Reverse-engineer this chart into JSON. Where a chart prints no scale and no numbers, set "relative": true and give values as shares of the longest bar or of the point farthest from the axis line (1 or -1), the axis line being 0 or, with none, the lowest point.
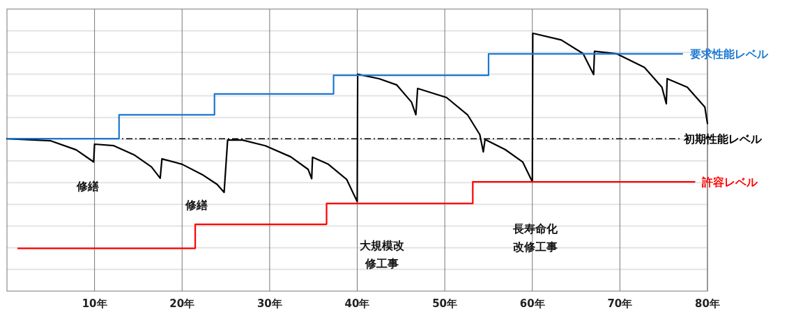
{
  "chart_data": {
    "type": "line",
    "relative": true,
    "grid": true,
    "xlim": [
      0,
      80
    ],
    "xticks": [
      {
        "value": 10,
        "label": "10年"
      },
      {
        "value": 20,
        "label": "20年"
      },
      {
        "value": 30,
        "label": "30年"
      },
      {
        "value": 40,
        "label": "40年"
      },
      {
        "value": 50,
        "label": "50年"
      },
      {
        "value": 60,
        "label": "60年"
      },
      {
        "value": 70,
        "label": "70年"
      },
      {
        "value": 80,
        "label": "80年"
      }
    ],
    "series": [
      {
        "color": "#000000",
        "x": [
          0,
          5.0,
          7.9,
          9.9,
          10.0,
          12.2,
          14.5,
          16.5,
          17.5,
          17.7,
          20.0,
          22.3,
          24.0,
          24.8,
          25.2,
          26.9,
          29.5,
          32.4,
          34.4,
          34.8,
          34.9,
          36.7,
          38.8,
          40.0,
          40.05,
          42.5,
          44.5,
          46.2,
          46.7,
          46.9,
          50.2,
          52.6,
          54.0,
          54.4,
          54.6,
          56.9,
          58.9,
          60.0,
          60.05,
          63.3,
          65.8,
          67.0,
          67.1,
          69.6,
          72.8,
          74.8,
          75.3,
          75.4,
          77.7,
          79.7,
          80.0
        ],
        "values": [
          0.591,
          0.583,
          0.548,
          0.501,
          0.57,
          0.564,
          0.529,
          0.482,
          0.438,
          0.513,
          0.492,
          0.452,
          0.414,
          0.383,
          0.586,
          0.586,
          0.564,
          0.521,
          0.472,
          0.436,
          0.519,
          0.492,
          0.433,
          0.347,
          0.841,
          0.824,
          0.8,
          0.733,
          0.684,
          0.786,
          0.751,
          0.684,
          0.607,
          0.54,
          0.588,
          0.549,
          0.501,
          0.424,
          1.0,
          0.974,
          0.921,
          0.84,
          0.93,
          0.921,
          0.868,
          0.791,
          0.727,
          0.824,
          0.791,
          0.714,
          0.65
        ]
      },
      {
        "type": "step",
        "name": "要求性能レベル",
        "color": "#1a78d2",
        "x": [
          0,
          12.8,
          23.7,
          37.3,
          55.0,
          77.2
        ],
        "values": [
          0.591,
          0.684,
          0.765,
          0.837,
          0.92,
          0.92
        ]
      },
      {
        "type": "step",
        "name": "許容レベル",
        "color": "#ff0000",
        "x": [
          1.2,
          21.5,
          36.5,
          53.2,
          78.6
        ],
        "values": [
          0.166,
          0.259,
          0.34,
          0.424,
          0.424
        ]
      }
    ],
    "ref_lines": [
      {
        "axis": "y",
        "value": 0.591,
        "label": "初期性能レベル",
        "color": "#000000",
        "line_style": "dashdot"
      }
    ],
    "annotations": [
      {
        "text": "修繕",
        "x": 10,
        "y": 0.501
      },
      {
        "text": "修繕",
        "x": 24.8,
        "y": 0.383
      },
      "大規模改修工事",
      "長寿命化改修工事"
    ]
  }
}
